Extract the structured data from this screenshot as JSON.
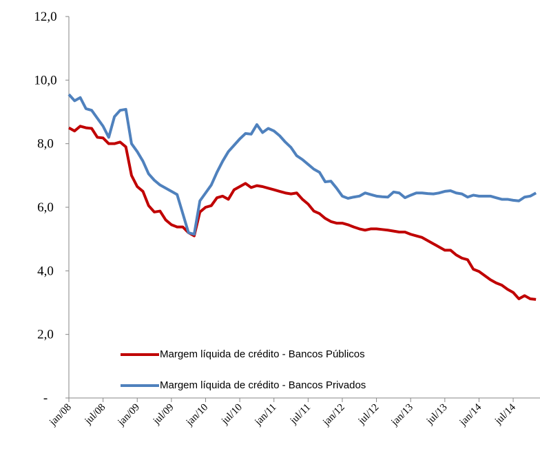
{
  "chart_data": {
    "type": "line",
    "categories": [
      "jan/08",
      null,
      null,
      null,
      null,
      null,
      "jul/08",
      null,
      null,
      null,
      null,
      null,
      "jan/09",
      null,
      null,
      null,
      null,
      null,
      "jul/09",
      null,
      null,
      null,
      null,
      null,
      "jan/10",
      null,
      null,
      null,
      null,
      null,
      "jul/10",
      null,
      null,
      null,
      null,
      null,
      "jan/11",
      null,
      null,
      null,
      null,
      null,
      "jul/11",
      null,
      null,
      null,
      null,
      null,
      "jan/12",
      null,
      null,
      null,
      null,
      null,
      "jul/12",
      null,
      null,
      null,
      null,
      null,
      "jan/13",
      null,
      null,
      null,
      null,
      null,
      "jul/13",
      null,
      null,
      null,
      null,
      null,
      "jan/14",
      null,
      null,
      null,
      null,
      null,
      "jul/14",
      null,
      null,
      null,
      null
    ],
    "series": [
      {
        "name": "Margem líquida de crédito - Bancos Públicos",
        "color": "#c00000",
        "values": [
          8.5,
          8.4,
          8.55,
          8.5,
          8.48,
          8.2,
          8.18,
          8.0,
          8.0,
          8.05,
          7.9,
          7.0,
          6.65,
          6.5,
          6.05,
          5.85,
          5.88,
          5.6,
          5.45,
          5.38,
          5.38,
          5.2,
          5.1,
          5.85,
          6.0,
          6.05,
          6.3,
          6.35,
          6.25,
          6.55,
          6.65,
          6.75,
          6.62,
          6.68,
          6.65,
          6.6,
          6.55,
          6.5,
          6.45,
          6.42,
          6.45,
          6.25,
          6.1,
          5.88,
          5.8,
          5.65,
          5.55,
          5.5,
          5.5,
          5.45,
          5.38,
          5.32,
          5.28,
          5.32,
          5.32,
          5.3,
          5.28,
          5.25,
          5.22,
          5.22,
          5.15,
          5.1,
          5.05,
          4.95,
          4.85,
          4.75,
          4.65,
          4.65,
          4.5,
          4.4,
          4.35,
          4.05,
          3.98,
          3.85,
          3.72,
          3.62,
          3.55,
          3.42,
          3.32,
          3.12,
          3.22,
          3.12,
          3.1
        ]
      },
      {
        "name": "Margem líquida de crédito - Bancos Privados",
        "color": "#4f81bd",
        "values": [
          9.55,
          9.35,
          9.45,
          9.1,
          9.05,
          8.8,
          8.55,
          8.2,
          8.85,
          9.05,
          9.08,
          8.0,
          7.75,
          7.45,
          7.05,
          6.85,
          6.7,
          6.6,
          6.5,
          6.4,
          5.8,
          5.2,
          5.15,
          6.2,
          6.45,
          6.7,
          7.1,
          7.45,
          7.75,
          7.95,
          8.15,
          8.32,
          8.3,
          8.6,
          8.35,
          8.48,
          8.4,
          8.25,
          8.05,
          7.88,
          7.62,
          7.5,
          7.35,
          7.2,
          7.1,
          6.8,
          6.82,
          6.6,
          6.35,
          6.28,
          6.32,
          6.35,
          6.45,
          6.4,
          6.35,
          6.33,
          6.32,
          6.48,
          6.45,
          6.3,
          6.38,
          6.45,
          6.45,
          6.43,
          6.42,
          6.45,
          6.5,
          6.52,
          6.45,
          6.42,
          6.32,
          6.38,
          6.35,
          6.35,
          6.35,
          6.3,
          6.25,
          6.25,
          6.22,
          6.2,
          6.32,
          6.35,
          6.45
        ]
      }
    ],
    "ylim": [
      0,
      12
    ],
    "yticks": [
      {
        "value": 0,
        "label": "-"
      },
      {
        "value": 2,
        "label": "2,0"
      },
      {
        "value": 4,
        "label": "4,0"
      },
      {
        "value": 6,
        "label": "6,0"
      },
      {
        "value": 8,
        "label": "8,0"
      },
      {
        "value": 10,
        "label": "10,0"
      },
      {
        "value": 12,
        "label": "12,0"
      }
    ],
    "grid": false,
    "legend": "lower left"
  }
}
